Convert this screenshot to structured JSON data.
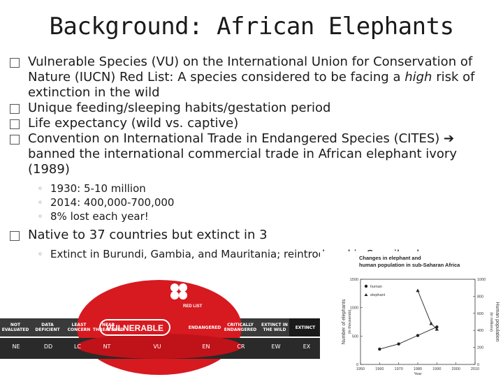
{
  "title": "Background: African Elephants",
  "bullets": [
    {
      "pre": "Vulnerable Species (VU) on the International Union for Conservation of Nature (IUCN) Red List: A species considered to be facing a ",
      "em": "high",
      "post": " risk of extinction in the wild"
    },
    {
      "text": "Unique feeding/sleeping habits/gestation period"
    },
    {
      "text": "Life expectancy (wild vs. captive)"
    },
    {
      "pre": "Convention on International Trade in Endangered Species (CITES) ",
      "post": " banned the international commercial trade in African elephant ivory (1989)"
    }
  ],
  "cites_subs": [
    "1930: 5-10 million",
    "2014: 400,000-700,000",
    "8% lost each year!"
  ],
  "bullet5": "Native to 37 countries but extinct in 3",
  "bullet5_sub": "Extinct in Burundi, Gambia, and Mauritania; reintroduced in Swaziland",
  "iucn": {
    "logo_text": "RED LIST",
    "highlight": "VULNERABLE",
    "categories": [
      "NOT EVALUATED",
      "DATA DEFICIENT",
      "LEAST CONCERN",
      "NEAR THREATENED",
      "ENDANGERED",
      "CRITICALLY ENDANGERED",
      "EXTINCT IN THE WILD",
      "EXTINCT"
    ],
    "abbrs": [
      "NE",
      "DD",
      "LC",
      "NT",
      "VU",
      "EN",
      "CR",
      "EW",
      "EX"
    ],
    "colors": {
      "red": "#d71920",
      "dark": "#3a3a3a",
      "black": "#1a1a1a"
    }
  },
  "chart_data": {
    "type": "line",
    "title": "Changes in elephant and human population in sub-Saharan Africa",
    "ylabel": "Number of elephants (in thousands)",
    "y2label": "Human population (in millions)",
    "xlabel": "Year",
    "x_ticks": [
      "1950",
      "1960",
      "1970",
      "1980",
      "1990",
      "2000",
      "2010"
    ],
    "y_ticks": [
      "0",
      "500",
      "1000",
      "1500"
    ],
    "y2_ticks": [
      "0",
      "200",
      "400",
      "600",
      "800",
      "1000"
    ],
    "xlim": [
      1950,
      2010
    ],
    "ylim": [
      0,
      1500
    ],
    "y2lim": [
      0,
      1000
    ],
    "series": [
      {
        "name": "human",
        "axis": "right",
        "marker": "circle",
        "x": [
          1960,
          1970,
          1980,
          1990
        ],
        "values": [
          180,
          240,
          340,
          440
        ]
      },
      {
        "name": "elephant",
        "axis": "left",
        "marker": "triangle",
        "x": [
          1980,
          1987,
          1990
        ],
        "values": [
          1300,
          720,
          620
        ]
      }
    ]
  }
}
